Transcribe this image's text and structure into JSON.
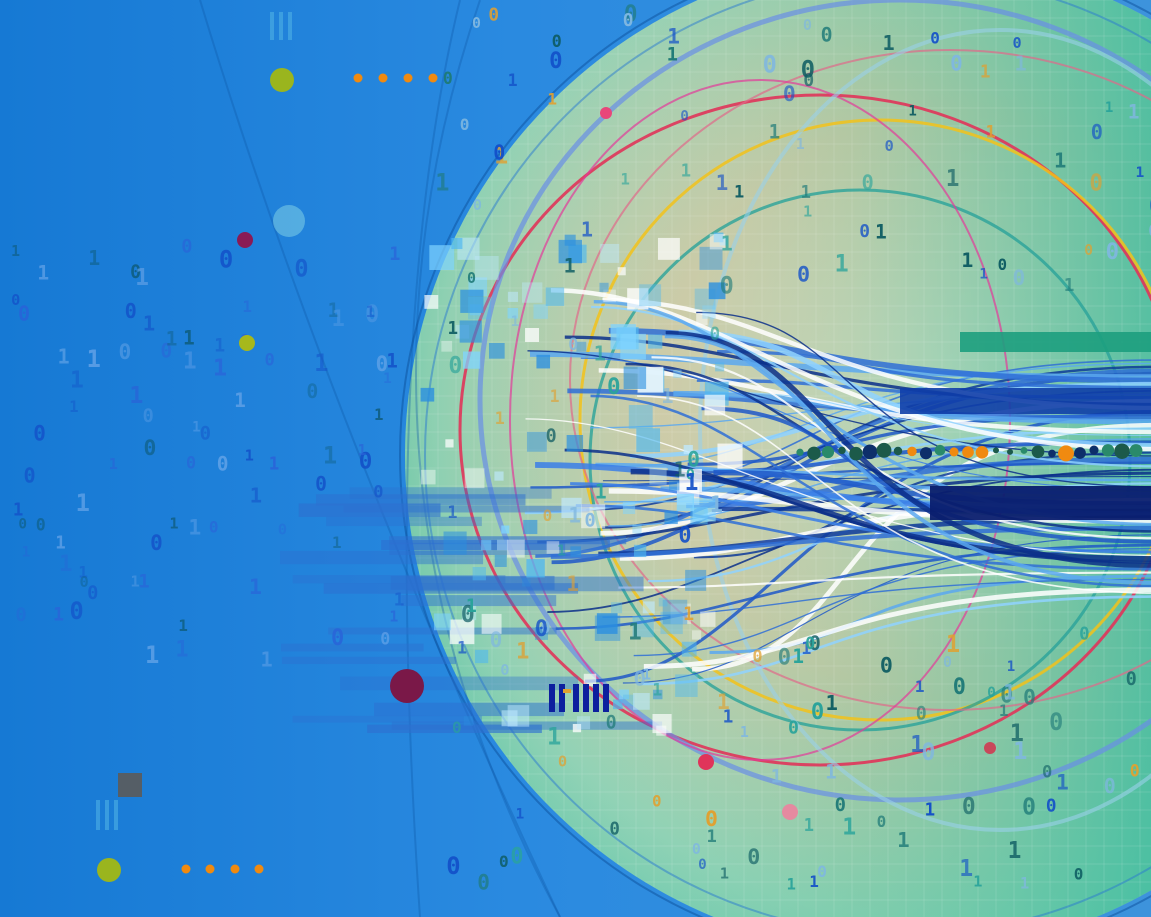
{
  "colors": {
    "bg_left": "#1a7fd8",
    "bg_mid": "#2f8ee0",
    "globe_sand": "#d9c8a6",
    "globe_teal": "#5fc7a8",
    "stream_dark": "#0b2f8a",
    "stream_mid": "#2f6fd6",
    "stream_light": "#8fd2ff",
    "ring_red": "#e0345a",
    "ring_yellow": "#f2c21a",
    "ring_teal": "#2aa39a",
    "digit_teal": "#1f7a78",
    "digit_orange": "#e0a030",
    "digit_blue": "#1350c8",
    "dot_green": "#9ab51e",
    "dot_maroon": "#7a1848",
    "dot_orange": "#f08a10"
  },
  "icons": [
    "binary-digit-glyphs",
    "data-stream-lines",
    "orbit-rings",
    "bar-mark-glyph",
    "dots-row"
  ]
}
